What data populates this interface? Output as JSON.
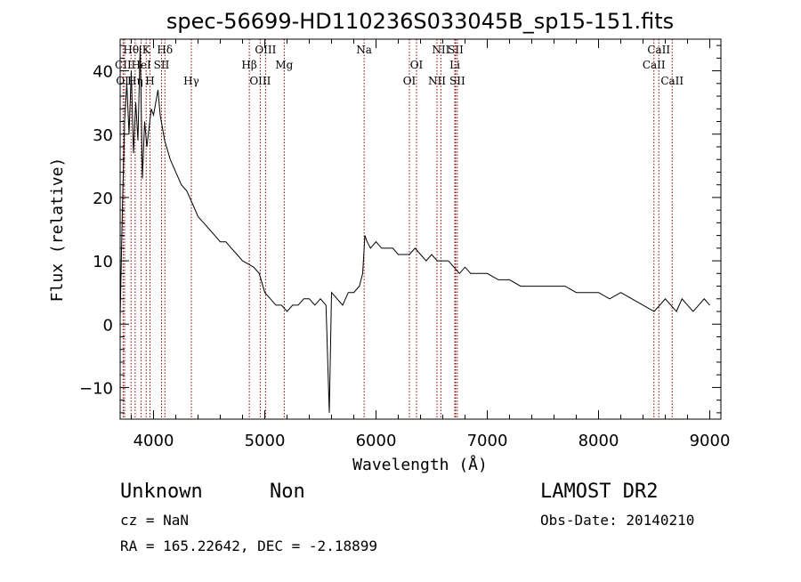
{
  "chart_data": {
    "type": "line",
    "title": "spec-56699-HD110236S033045B_sp15-151.fits",
    "xlabel": "Wavelength (Å)",
    "ylabel": "Flux (relative)",
    "xlim": [
      3700,
      9100
    ],
    "ylim": [
      -15,
      45
    ],
    "x_ticks": [
      4000,
      5000,
      6000,
      7000,
      8000,
      9000
    ],
    "y_ticks": [
      -10,
      0,
      10,
      20,
      30,
      40
    ],
    "grid": false,
    "series_color": "#000000",
    "marker_color": "#8b0000",
    "spectrum": {
      "x": [
        3700,
        3720,
        3740,
        3760,
        3780,
        3800,
        3820,
        3840,
        3860,
        3880,
        3900,
        3920,
        3940,
        3960,
        3980,
        4000,
        4020,
        4040,
        4060,
        4080,
        4100,
        4150,
        4200,
        4250,
        4300,
        4350,
        4400,
        4450,
        4500,
        4550,
        4600,
        4650,
        4700,
        4750,
        4800,
        4850,
        4900,
        4950,
        5000,
        5050,
        5100,
        5150,
        5200,
        5250,
        5300,
        5350,
        5400,
        5450,
        5500,
        5550,
        5580,
        5600,
        5650,
        5700,
        5750,
        5800,
        5850,
        5880,
        5900,
        5920,
        5950,
        6000,
        6050,
        6100,
        6150,
        6200,
        6250,
        6300,
        6350,
        6400,
        6450,
        6500,
        6550,
        6600,
        6650,
        6700,
        6750,
        6800,
        6850,
        6900,
        7000,
        7100,
        7200,
        7300,
        7400,
        7500,
        7600,
        7700,
        7800,
        7900,
        8000,
        8100,
        8200,
        8300,
        8400,
        8500,
        8550,
        8600,
        8650,
        8700,
        8750,
        8800,
        8850,
        8900,
        8950,
        9000
      ],
      "y": [
        1,
        18,
        32,
        38,
        30,
        40,
        27,
        35,
        29,
        44,
        23,
        32,
        28,
        31,
        34,
        33,
        35,
        37,
        33,
        31,
        29,
        26,
        24,
        22,
        21,
        19,
        17,
        16,
        15,
        14,
        13,
        13,
        12,
        11,
        10,
        9.5,
        9,
        8,
        5,
        4,
        3,
        3,
        2,
        3,
        3,
        4,
        4,
        3,
        4,
        3,
        -14,
        5,
        4,
        3,
        5,
        5,
        6,
        8,
        14,
        13,
        12,
        13,
        12,
        12,
        12,
        11,
        11,
        11,
        12,
        11,
        10,
        11,
        10,
        10,
        10,
        9,
        8,
        9,
        8,
        8,
        8,
        7,
        7,
        6,
        6,
        6,
        6,
        6,
        5,
        5,
        5,
        4,
        5,
        4,
        3,
        2,
        3,
        4,
        3,
        2,
        4,
        3,
        2,
        3,
        4,
        3
      ]
    },
    "lines": [
      {
        "label": "Hθ",
        "x": 3798,
        "row": 0
      },
      {
        "label": "K",
        "x": 3934,
        "row": 0
      },
      {
        "label": "Hδ",
        "x": 4102,
        "row": 0
      },
      {
        "label": "OIII",
        "x": 5007,
        "row": 0
      },
      {
        "label": "Na",
        "x": 5893,
        "row": 0
      },
      {
        "label": "NII",
        "x": 6583,
        "row": 0
      },
      {
        "label": "SII",
        "x": 6716,
        "row": 0
      },
      {
        "label": "CaII",
        "x": 8542,
        "row": 0
      },
      {
        "label": "CII",
        "x": 3727,
        "row": 1
      },
      {
        "label": "HeI",
        "x": 3889,
        "row": 1
      },
      {
        "label": "SII",
        "x": 4072,
        "row": 1
      },
      {
        "label": "Hβ",
        "x": 4861,
        "row": 1
      },
      {
        "label": "Mg",
        "x": 5175,
        "row": 1
      },
      {
        "label": "OI",
        "x": 6364,
        "row": 1
      },
      {
        "label": "Li",
        "x": 6708,
        "row": 1
      },
      {
        "label": "CaII",
        "x": 8498,
        "row": 1
      },
      {
        "label": "OII",
        "x": 3740,
        "row": 2
      },
      {
        "label": "Hη",
        "x": 3835,
        "row": 2
      },
      {
        "label": "H",
        "x": 3968,
        "row": 2
      },
      {
        "label": "Hγ",
        "x": 4340,
        "row": 2
      },
      {
        "label": "OIII",
        "x": 4959,
        "row": 2
      },
      {
        "label": "OI",
        "x": 6300,
        "row": 2
      },
      {
        "label": "NII",
        "x": 6548,
        "row": 2
      },
      {
        "label": "SII",
        "x": 6731,
        "row": 2
      },
      {
        "label": "CaII",
        "x": 8662,
        "row": 2
      }
    ]
  },
  "info": {
    "class_label": "Unknown",
    "subclass_label": "Non",
    "survey_label": "LAMOST DR2",
    "cz_text": "cz = NaN",
    "obs_date_text": "Obs-Date: 20140210",
    "radec_text": "RA = 165.22642, DEC =  -2.18899"
  }
}
